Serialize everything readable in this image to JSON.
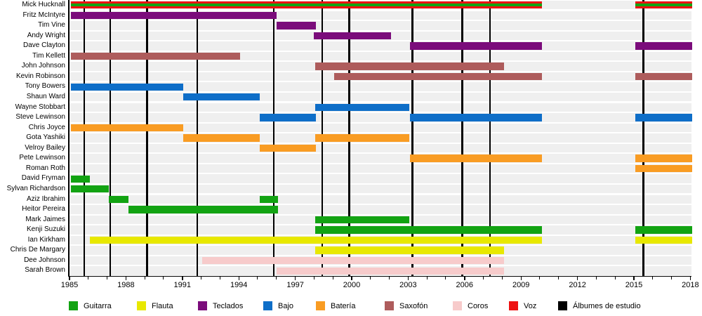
{
  "chart_data": {
    "type": "timeline",
    "title": "",
    "x_axis": {
      "start": 1985,
      "end": 2018,
      "major_tick_labels": [
        1985,
        1988,
        1991,
        1994,
        1997,
        2000,
        2003,
        2006,
        2009,
        2012,
        2015,
        2018
      ],
      "minor_tick_every": 1,
      "grid": false
    },
    "colors": {
      "guitarra": "#12a312",
      "flauta": "#e8e800",
      "teclados": "#7b0c7b",
      "bajo": "#0e6ec8",
      "bateria": "#f99c23",
      "saxofon": "#ae5c5c",
      "coros": "#f7cbcb",
      "voz": "#ee1111",
      "albumes": "#000000"
    },
    "legend": [
      {
        "key": "guitarra",
        "label": "Guitarra"
      },
      {
        "key": "flauta",
        "label": "Flauta"
      },
      {
        "key": "teclados",
        "label": "Teclados"
      },
      {
        "key": "bajo",
        "label": "Bajo"
      },
      {
        "key": "bateria",
        "label": "Batería"
      },
      {
        "key": "saxofon",
        "label": "Saxofón"
      },
      {
        "key": "coros",
        "label": "Coros"
      },
      {
        "key": "voz",
        "label": "Voz"
      },
      {
        "key": "albumes",
        "label": "Álbumes de estudio"
      }
    ],
    "album_years": [
      1985.79,
      1987.17,
      1989.12,
      1991.79,
      1995.86,
      1998.43,
      1999.88,
      2003.23,
      2005.88,
      2007.35,
      2015.5
    ],
    "members": [
      {
        "name": "Mick Hucknall",
        "bars": [
          {
            "instrument": "voz",
            "start": 1985.08,
            "end": 2010.1,
            "stripe": "guitarra"
          },
          {
            "instrument": "voz",
            "start": 2015.08,
            "end": 2018.1,
            "stripe": "guitarra"
          }
        ]
      },
      {
        "name": "Fritz McIntyre",
        "bars": [
          {
            "instrument": "teclados",
            "start": 1985.08,
            "end": 1996.0
          }
        ]
      },
      {
        "name": "Tim Vine",
        "bars": [
          {
            "instrument": "teclados",
            "start": 1996.0,
            "end": 1998.1
          }
        ]
      },
      {
        "name": "Andy Wright",
        "bars": [
          {
            "instrument": "teclados",
            "start": 1998.0,
            "end": 2002.1
          }
        ]
      },
      {
        "name": "Dave Clayton",
        "bars": [
          {
            "instrument": "teclados",
            "start": 2003.1,
            "end": 2010.1
          },
          {
            "instrument": "teclados",
            "start": 2015.08,
            "end": 2018.1
          }
        ]
      },
      {
        "name": "Tim Kellett",
        "bars": [
          {
            "instrument": "saxofon",
            "start": 1985.08,
            "end": 1994.07
          }
        ]
      },
      {
        "name": "John Johnson",
        "bars": [
          {
            "instrument": "saxofon",
            "start": 1998.05,
            "end": 2008.1
          }
        ]
      },
      {
        "name": "Kevin Robinson",
        "bars": [
          {
            "instrument": "saxofon",
            "start": 1999.05,
            "end": 2010.1
          },
          {
            "instrument": "saxofon",
            "start": 2015.08,
            "end": 2018.1
          }
        ]
      },
      {
        "name": "Tony Bowers",
        "bars": [
          {
            "instrument": "bajo",
            "start": 1985.08,
            "end": 1991.05
          }
        ]
      },
      {
        "name": "Shaun Ward",
        "bars": [
          {
            "instrument": "bajo",
            "start": 1991.05,
            "end": 1995.1
          }
        ]
      },
      {
        "name": "Wayne Stobbart",
        "bars": [
          {
            "instrument": "bajo",
            "start": 1998.05,
            "end": 2003.05
          }
        ]
      },
      {
        "name": "Steve Lewinson",
        "bars": [
          {
            "instrument": "bajo",
            "start": 1995.1,
            "end": 1998.1
          },
          {
            "instrument": "bajo",
            "start": 2003.1,
            "end": 2010.1
          },
          {
            "instrument": "bajo",
            "start": 2015.08,
            "end": 2018.1
          }
        ]
      },
      {
        "name": "Chris Joyce",
        "bars": [
          {
            "instrument": "bateria",
            "start": 1985.08,
            "end": 1991.05
          }
        ]
      },
      {
        "name": "Gota Yashiki",
        "bars": [
          {
            "instrument": "bateria",
            "start": 1991.05,
            "end": 1995.1
          },
          {
            "instrument": "bateria",
            "start": 1998.05,
            "end": 2003.05
          }
        ]
      },
      {
        "name": "Velroy Bailey",
        "bars": [
          {
            "instrument": "bateria",
            "start": 1995.1,
            "end": 1998.1
          }
        ]
      },
      {
        "name": "Pete Lewinson",
        "bars": [
          {
            "instrument": "bateria",
            "start": 2003.1,
            "end": 2010.1
          },
          {
            "instrument": "bateria",
            "start": 2015.08,
            "end": 2018.1
          }
        ]
      },
      {
        "name": "Roman Roth",
        "bars": [
          {
            "instrument": "bateria",
            "start": 2015.08,
            "end": 2018.1
          }
        ]
      },
      {
        "name": "David Fryman",
        "bars": [
          {
            "instrument": "guitarra",
            "start": 1985.08,
            "end": 1986.1
          }
        ]
      },
      {
        "name": "Sylvan Richardson",
        "bars": [
          {
            "instrument": "guitarra",
            "start": 1985.08,
            "end": 1987.1
          }
        ]
      },
      {
        "name": "Aziz Ibrahim",
        "bars": [
          {
            "instrument": "guitarra",
            "start": 1987.1,
            "end": 1988.15
          },
          {
            "instrument": "guitarra",
            "start": 1995.1,
            "end": 1996.1
          }
        ]
      },
      {
        "name": "Heitor Pereira",
        "bars": [
          {
            "instrument": "guitarra",
            "start": 1988.15,
            "end": 1996.1
          }
        ]
      },
      {
        "name": "Mark Jaimes",
        "bars": [
          {
            "instrument": "guitarra",
            "start": 1998.05,
            "end": 2003.05
          }
        ]
      },
      {
        "name": "Kenji Suzuki",
        "bars": [
          {
            "instrument": "guitarra",
            "start": 1998.05,
            "end": 2010.1
          },
          {
            "instrument": "guitarra",
            "start": 2015.08,
            "end": 2018.1
          }
        ]
      },
      {
        "name": "Ian Kirkham",
        "bars": [
          {
            "instrument": "flauta",
            "start": 1986.1,
            "end": 2010.1
          },
          {
            "instrument": "flauta",
            "start": 2015.08,
            "end": 2018.1
          }
        ]
      },
      {
        "name": "Chris De Margary",
        "bars": [
          {
            "instrument": "flauta",
            "start": 1998.05,
            "end": 2008.1
          }
        ]
      },
      {
        "name": "Dee Johnson",
        "bars": [
          {
            "instrument": "coros",
            "start": 1992.05,
            "end": 2008.1
          }
        ]
      },
      {
        "name": "Sarah Brown",
        "bars": [
          {
            "instrument": "coros",
            "start": 1996.0,
            "end": 2008.1
          }
        ]
      }
    ]
  }
}
